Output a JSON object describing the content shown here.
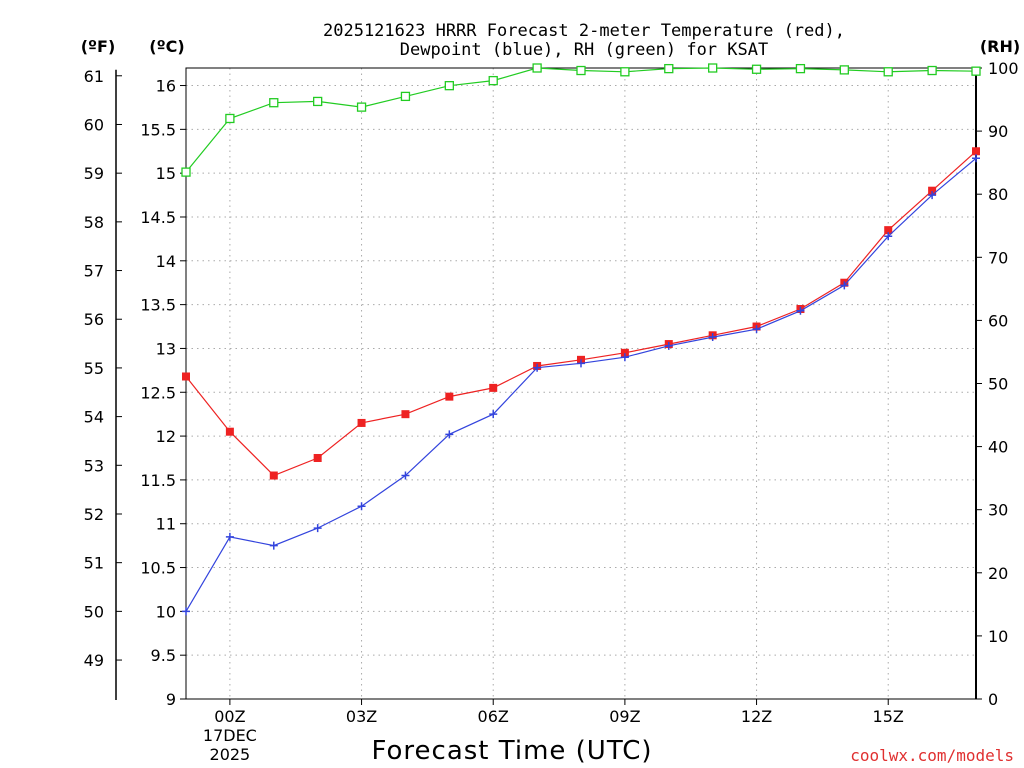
{
  "chart_data": {
    "type": "line",
    "title_line1": "2025121623 HRRR Forecast 2-meter Temperature (red),",
    "title_line2": "Dewpoint (blue), RH (green) for KSAT",
    "xlabel": "Forecast Time (UTC)",
    "credit": "coolwx.com/models",
    "units": {
      "f": "(ºF)",
      "c": "(ºC)",
      "rh": "(RH)"
    },
    "x_ticks": [
      "00Z",
      "03Z",
      "06Z",
      "09Z",
      "12Z",
      "15Z"
    ],
    "x_tick_hours": [
      0,
      3,
      6,
      9,
      12,
      15
    ],
    "date_label": [
      "17DEC",
      "2025"
    ],
    "x_range_hours": [
      -1,
      17
    ],
    "y_c_range": [
      9,
      16.2
    ],
    "y_c_ticks": [
      "9",
      "9.5",
      "10",
      "10.5",
      "11",
      "11.5",
      "12",
      "12.5",
      "13",
      "13.5",
      "14",
      "14.5",
      "15",
      "15.5",
      "16"
    ],
    "y_f_ticks": [
      "49",
      "50",
      "51",
      "52",
      "53",
      "54",
      "55",
      "56",
      "57",
      "58",
      "59",
      "60",
      "61"
    ],
    "y_rh_range": [
      0,
      100
    ],
    "y_rh_ticks": [
      "0",
      "10",
      "20",
      "30",
      "40",
      "50",
      "60",
      "70",
      "80",
      "90",
      "100"
    ],
    "grid": true,
    "x_hours": [
      -1,
      0,
      1,
      2,
      3,
      4,
      5,
      6,
      7,
      8,
      9,
      10,
      11,
      12,
      13,
      14,
      15,
      16,
      17
    ],
    "series": [
      {
        "name": "Temperature",
        "units": "C",
        "color": "#ee2222",
        "marker": "filled-square",
        "values": [
          12.68,
          12.05,
          11.55,
          11.75,
          12.15,
          12.25,
          12.45,
          12.55,
          12.8,
          12.87,
          12.95,
          13.05,
          13.15,
          13.25,
          13.45,
          13.75,
          14.35,
          14.8,
          15.25
        ]
      },
      {
        "name": "Dewpoint",
        "units": "C",
        "color": "#3344dd",
        "marker": "plus",
        "values": [
          10.0,
          10.85,
          10.75,
          10.95,
          11.2,
          11.55,
          12.02,
          12.25,
          12.78,
          12.83,
          12.9,
          13.03,
          13.13,
          13.22,
          13.43,
          13.72,
          14.28,
          14.75,
          15.17
        ]
      },
      {
        "name": "RH",
        "units": "%",
        "color": "#22cc22",
        "marker": "open-square",
        "values": [
          83.5,
          92,
          94.5,
          94.7,
          93.8,
          95.5,
          97.2,
          98,
          100,
          99.6,
          99.4,
          99.9,
          100,
          99.8,
          99.9,
          99.7,
          99.4,
          99.6,
          99.5
        ]
      }
    ]
  }
}
